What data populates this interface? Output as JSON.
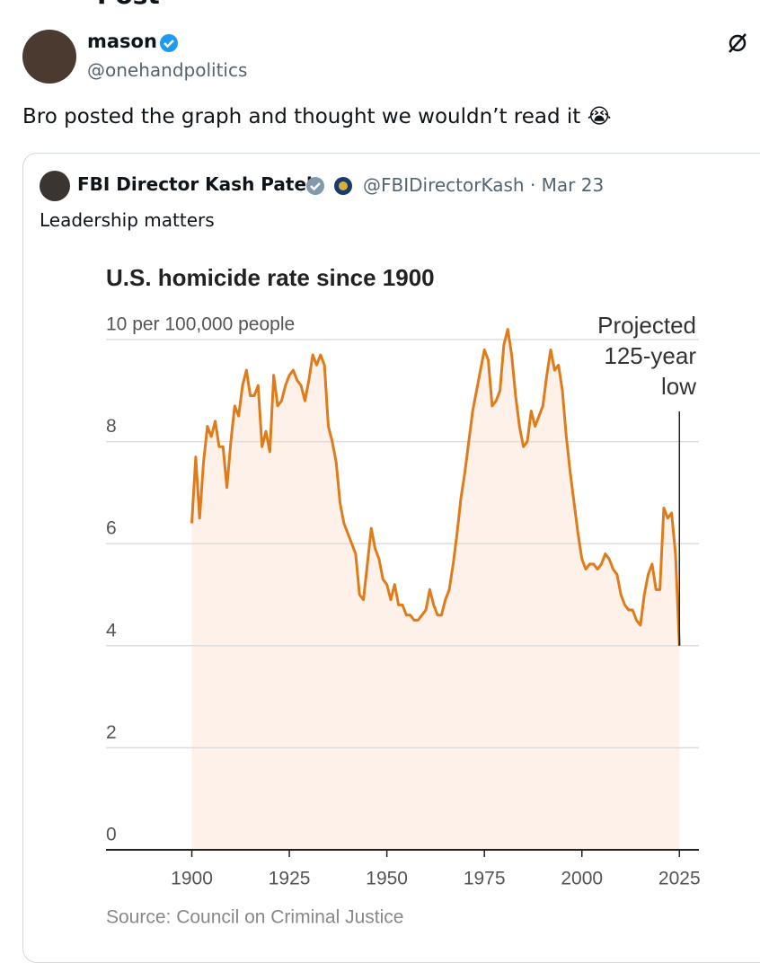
{
  "header": {
    "title": "Post"
  },
  "post": {
    "name": "mason",
    "handle": "@onehandpolitics",
    "text": "Bro posted the graph and thought we wouldn’t read it 😭"
  },
  "quote": {
    "name": "FBI Director Kash Patel",
    "handle": "@FBIDirectorKash",
    "separator": "·",
    "date": "Mar 23",
    "text": "Leadership matters"
  },
  "chart_data": {
    "type": "area-line",
    "title": "U.S. homicide rate since 1900",
    "source": "Source: Council on Criminal Justice",
    "annotation": [
      "Projected",
      "125-year",
      "low"
    ],
    "annotation_x": 2025,
    "color": "#e07b1a",
    "fill": "#fdf1ea",
    "grid": true,
    "x": [
      1900,
      1901,
      1902,
      1903,
      1904,
      1905,
      1906,
      1907,
      1908,
      1909,
      1910,
      1911,
      1912,
      1913,
      1914,
      1915,
      1916,
      1917,
      1918,
      1919,
      1920,
      1921,
      1922,
      1923,
      1924,
      1925,
      1926,
      1927,
      1928,
      1929,
      1930,
      1931,
      1932,
      1933,
      1934,
      1935,
      1936,
      1937,
      1938,
      1939,
      1940,
      1941,
      1942,
      1943,
      1944,
      1945,
      1946,
      1947,
      1948,
      1949,
      1950,
      1951,
      1952,
      1953,
      1954,
      1955,
      1956,
      1957,
      1958,
      1959,
      1960,
      1961,
      1962,
      1963,
      1964,
      1965,
      1966,
      1967,
      1968,
      1969,
      1970,
      1971,
      1972,
      1973,
      1974,
      1975,
      1976,
      1977,
      1978,
      1979,
      1980,
      1981,
      1982,
      1983,
      1984,
      1985,
      1986,
      1987,
      1988,
      1989,
      1990,
      1991,
      1992,
      1993,
      1994,
      1995,
      1996,
      1997,
      1998,
      1999,
      2000,
      2001,
      2002,
      2003,
      2004,
      2005,
      2006,
      2007,
      2008,
      2009,
      2010,
      2011,
      2012,
      2013,
      2014,
      2015,
      2016,
      2017,
      2018,
      2019,
      2020,
      2021,
      2022,
      2023,
      2024,
      2025
    ],
    "values": [
      6.4,
      7.7,
      6.5,
      7.6,
      8.3,
      8.1,
      8.4,
      7.9,
      7.9,
      7.1,
      8.0,
      8.7,
      8.5,
      9.1,
      9.4,
      8.9,
      8.9,
      9.1,
      7.9,
      8.2,
      7.8,
      9.3,
      8.7,
      8.8,
      9.1,
      9.3,
      9.4,
      9.2,
      9.1,
      8.8,
      9.2,
      9.7,
      9.5,
      9.7,
      9.5,
      8.3,
      8.0,
      7.6,
      6.8,
      6.4,
      6.2,
      6.0,
      5.8,
      5.0,
      4.9,
      5.6,
      6.3,
      5.9,
      5.7,
      5.3,
      5.2,
      4.9,
      5.2,
      4.8,
      4.8,
      4.6,
      4.6,
      4.5,
      4.5,
      4.6,
      4.7,
      5.1,
      4.8,
      4.6,
      4.6,
      4.9,
      5.1,
      5.6,
      6.2,
      6.9,
      7.4,
      8.0,
      8.6,
      9.0,
      9.4,
      9.8,
      9.6,
      8.7,
      8.8,
      9.0,
      9.9,
      10.2,
      9.7,
      8.9,
      8.3,
      7.9,
      8.0,
      8.6,
      8.3,
      8.5,
      8.7,
      9.3,
      9.8,
      9.4,
      9.5,
      9.0,
      8.1,
      7.4,
      6.8,
      6.2,
      5.7,
      5.5,
      5.6,
      5.6,
      5.5,
      5.6,
      5.8,
      5.7,
      5.5,
      5.4,
      5.0,
      4.8,
      4.7,
      4.7,
      4.5,
      4.4,
      5.0,
      5.4,
      5.6,
      5.1,
      5.1,
      6.7,
      6.5,
      6.6,
      5.8,
      4.0
    ],
    "xlim": [
      1878,
      2030
    ],
    "xticks": [
      1900,
      1925,
      1950,
      1975,
      2000,
      2025
    ],
    "ylim": [
      0,
      10
    ],
    "yticks": [
      0,
      2,
      4,
      6,
      8,
      {
        "value": 10,
        "label": "10 per 100,000 people"
      }
    ]
  }
}
